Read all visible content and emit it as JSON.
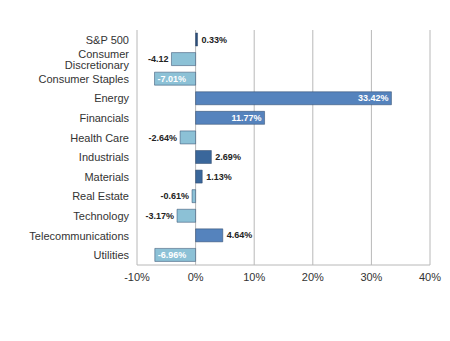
{
  "chart_data": {
    "type": "bar",
    "orientation": "horizontal",
    "categories": [
      "S&P 500",
      "Consumer Discretionary",
      "Consumer Staples",
      "Energy",
      "Financials",
      "Health Care",
      "Industrials",
      "Materials",
      "Real Estate",
      "Technology",
      "Telecommunications",
      "Utilities"
    ],
    "values": [
      0.33,
      -4.12,
      -7.01,
      33.42,
      11.77,
      -2.64,
      2.69,
      1.13,
      -0.61,
      -3.17,
      4.64,
      -6.96
    ],
    "value_labels": [
      "0.33%",
      "-4.12",
      "-7.01%",
      "33.42%",
      "11.77%",
      "-2.64%",
      "2.69%",
      "1.13%",
      "-0.61%",
      "-3.17%",
      "4.64%",
      "-6.96%"
    ],
    "colors": [
      "#2c4f7c",
      "#8cc1d6",
      "#8cc1d6",
      "#5583bd",
      "#5583bd",
      "#8cc1d6",
      "#3a679b",
      "#3a679b",
      "#8cc1d6",
      "#8cc1d6",
      "#5583bd",
      "#8cc1d6"
    ],
    "xlim": [
      -10,
      40
    ],
    "xticks": [
      {
        "value": -10,
        "label": "-10%"
      },
      {
        "value": 0,
        "label": "0%"
      },
      {
        "value": 10,
        "label": "10%"
      },
      {
        "value": 20,
        "label": "20%"
      },
      {
        "value": 30,
        "label": "30%"
      },
      {
        "value": 40,
        "label": "40%"
      }
    ],
    "grid": true,
    "data_labels": true
  }
}
